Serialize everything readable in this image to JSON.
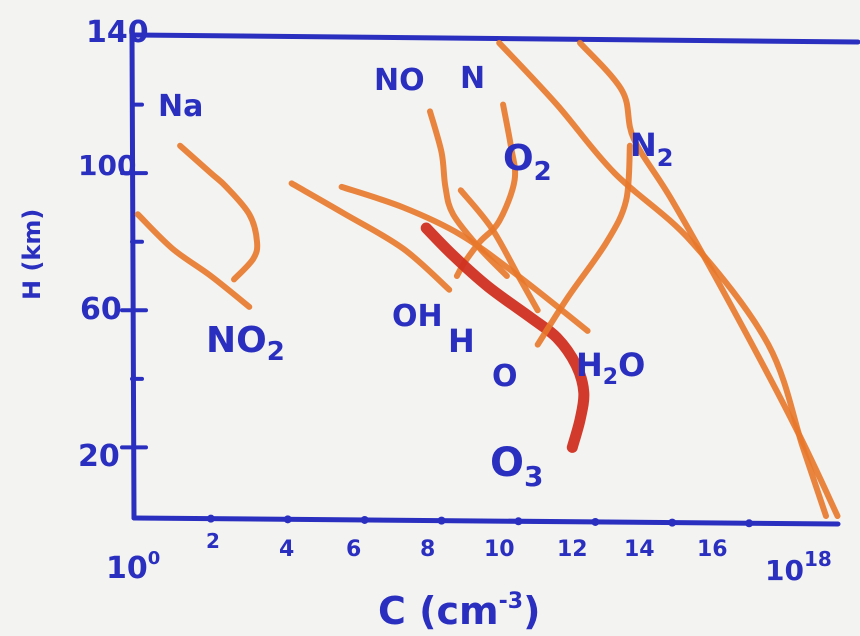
{
  "chart_data": {
    "type": "line",
    "title": "",
    "xlabel": "C (cm⁻³)",
    "ylabel": "H (km)",
    "x_scale": "log",
    "xlim": [
      0,
      18
    ],
    "ylim": [
      0,
      140
    ],
    "x_ticks": [
      0,
      2,
      4,
      6,
      8,
      10,
      12,
      14,
      16,
      18
    ],
    "x_tick_labels": [
      "10⁰",
      "2",
      "4",
      "6",
      "8",
      "10",
      "12",
      "14",
      "16",
      "10¹⁸"
    ],
    "y_ticks": [
      20,
      60,
      100,
      140
    ],
    "y_tick_labels": [
      "20",
      "60",
      "100",
      "140"
    ],
    "grid": false,
    "legend": "none",
    "series": [
      {
        "name": "Na",
        "color": "#e8782a",
        "x": [
          1.2,
          2.0,
          2.4,
          3.0,
          3.2,
          3.1,
          2.6
        ],
        "y": [
          108,
          100,
          96,
          88,
          80,
          75,
          69
        ]
      },
      {
        "name": "NO₂",
        "color": "#e8782a",
        "x": [
          0.1,
          1.0,
          2.0,
          3.0
        ],
        "y": [
          88,
          78,
          70,
          61
        ]
      },
      {
        "name": "OH",
        "color": "#e8782a",
        "x": [
          4.1,
          5.5,
          7.0,
          8.2
        ],
        "y": [
          97,
          88,
          78,
          66
        ]
      },
      {
        "name": "H",
        "color": "#e8782a",
        "x": [
          5.4,
          7.0,
          8.5,
          10.0,
          11.8
        ],
        "y": [
          96,
          90,
          82,
          70,
          54
        ]
      },
      {
        "name": "NO",
        "color": "#e8782a",
        "x": [
          7.7,
          8.0,
          8.1,
          8.3,
          9.0,
          9.7
        ],
        "y": [
          118,
          106,
          96,
          88,
          78,
          70
        ]
      },
      {
        "name": "N",
        "color": "#e8782a",
        "x": [
          9.6,
          9.8,
          9.9,
          9.5,
          9.0,
          8.6,
          8.4
        ],
        "y": [
          120,
          108,
          98,
          86,
          80,
          74,
          70
        ]
      },
      {
        "name": "O₃",
        "color": "#d03020",
        "x": [
          7.6,
          8.3,
          9.2,
          10.3,
          11.0,
          11.5,
          11.7,
          11.6,
          11.4
        ],
        "y": [
          84,
          76,
          67,
          58,
          52,
          44,
          36,
          28,
          20
        ]
      },
      {
        "name": "O",
        "color": "#e8782a",
        "x": [
          8.5,
          9.3,
          10.0,
          10.5
        ],
        "y": [
          95,
          84,
          70,
          60
        ]
      },
      {
        "name": "H₂O",
        "color": "#e8782a",
        "x": [
          10.5,
          11.3,
          12.3,
          12.8,
          12.9
        ],
        "y": [
          50,
          64,
          80,
          92,
          108
        ]
      },
      {
        "name": "O₂",
        "color": "#e8782a",
        "x": [
          9.5,
          11.0,
          12.5,
          14.5,
          16.5,
          17.4,
          18.0
        ],
        "y": [
          138,
          120,
          100,
          80,
          50,
          20,
          0
        ]
      },
      {
        "name": "N₂",
        "color": "#e8782a",
        "x": [
          11.6,
          12.7,
          13.0,
          14.0,
          15.5,
          17.2,
          18.3
        ],
        "y": [
          138,
          124,
          110,
          92,
          62,
          26,
          0
        ]
      }
    ]
  },
  "labels": {
    "y_tick_140": "140",
    "y_tick_100": "100",
    "y_tick_60": "60",
    "y_tick_20": "20",
    "x_tick_0": "10",
    "x_tick_0_exp": "0",
    "x_tick_2": "2",
    "x_tick_4": "4",
    "x_tick_6": "6",
    "x_tick_8": "8",
    "x_tick_10": "10",
    "x_tick_12": "12",
    "x_tick_14": "14",
    "x_tick_16": "16",
    "x_tick_18": "10",
    "x_tick_18_exp": "18",
    "xlabel_main": "C (cm",
    "xlabel_exp": "-3",
    "xlabel_close": ")",
    "ylabel": "H (km)",
    "series_na": "Na",
    "series_no2_main": "NO",
    "series_no2_sub": "2",
    "series_no": "NO",
    "series_n": "N",
    "series_o2_main": "O",
    "series_o2_sub": "2",
    "series_n2_main": "N",
    "series_n2_sub": "2",
    "series_oh": "OH",
    "series_h": "H",
    "series_o": "O",
    "series_h2o_h": "H",
    "series_h2o_sub": "2",
    "series_h2o_o": "O",
    "series_o3_main": "O",
    "series_o3_sub": "3"
  },
  "colors": {
    "ink": "#2a2fc0",
    "orange": "#e8782a",
    "red": "#d03020",
    "paper": "#f3f3f1"
  }
}
